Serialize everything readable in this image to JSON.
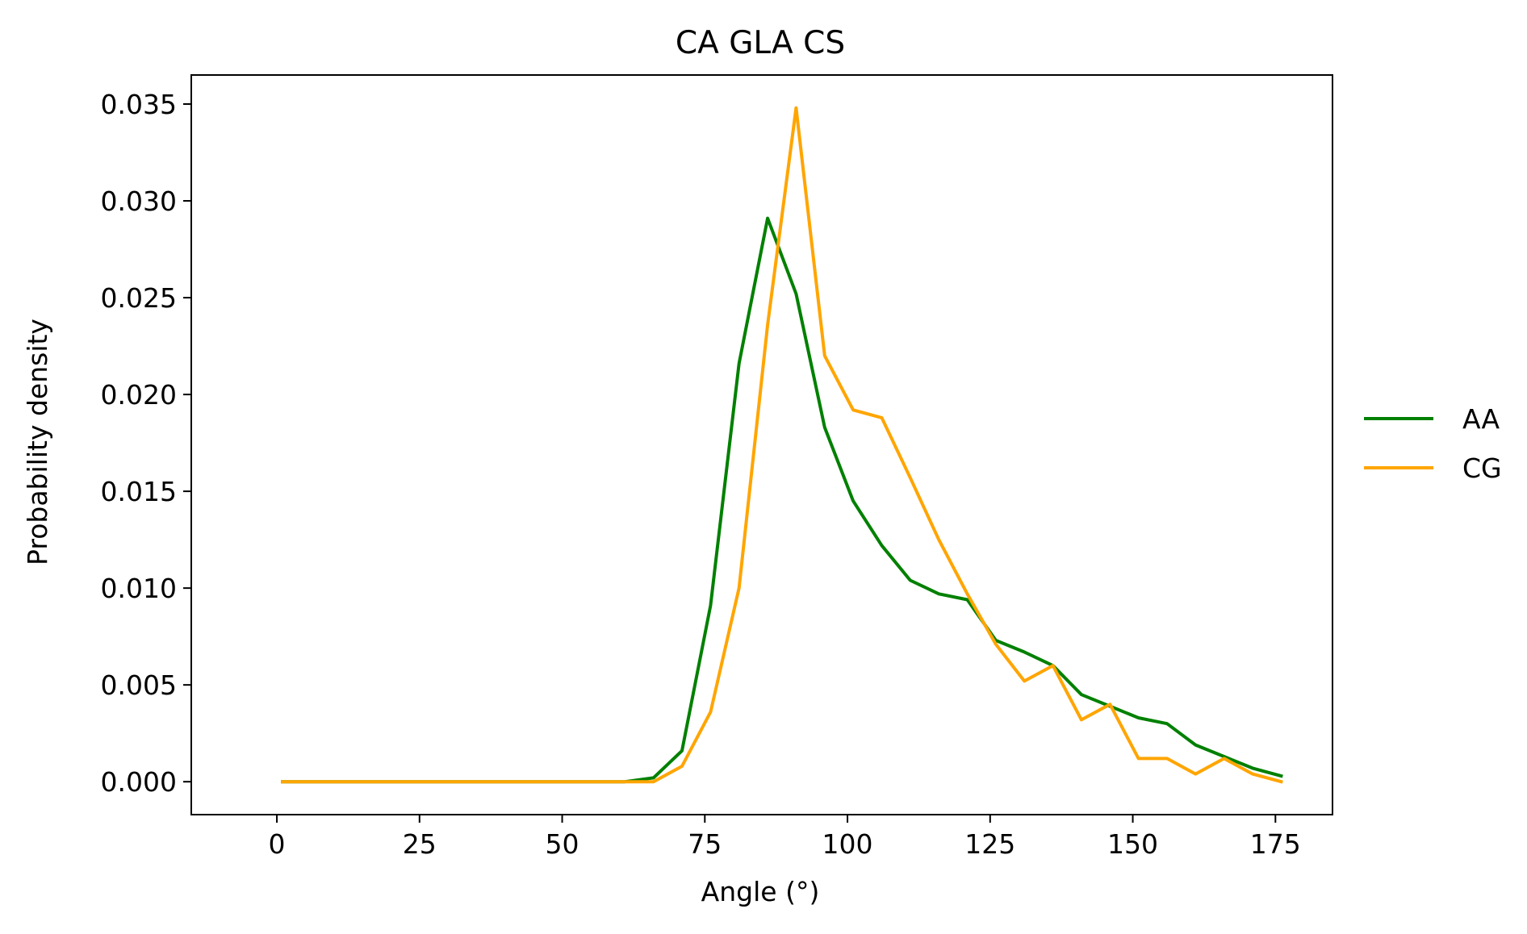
{
  "chart_data": {
    "type": "line",
    "title": "CA GLA CS",
    "xlabel": "Angle (°)",
    "ylabel": "Probability density",
    "xlim": [
      -15,
      185
    ],
    "ylim": [
      -0.0017,
      0.0365
    ],
    "xticks": [
      0,
      25,
      50,
      75,
      100,
      125,
      150,
      175
    ],
    "xtick_labels": [
      "0",
      "25",
      "50",
      "75",
      "100",
      "125",
      "150",
      "175"
    ],
    "yticks": [
      0.0,
      0.005,
      0.01,
      0.015,
      0.02,
      0.025,
      0.03,
      0.035
    ],
    "ytick_labels": [
      "0.000",
      "0.005",
      "0.010",
      "0.015",
      "0.020",
      "0.025",
      "0.030",
      "0.035"
    ],
    "grid": false,
    "legend_position": "outside-right",
    "x": [
      1,
      6,
      11,
      16,
      21,
      26,
      31,
      36,
      41,
      46,
      51,
      56,
      61,
      66,
      71,
      76,
      81,
      86,
      91,
      96,
      101,
      106,
      111,
      116,
      121,
      126,
      131,
      136,
      141,
      146,
      151,
      156,
      161,
      166,
      171,
      176
    ],
    "series": [
      {
        "name": "AA",
        "color": "#008000",
        "values": [
          0,
          0,
          0,
          0,
          0,
          0,
          0,
          0,
          0,
          0,
          0,
          0,
          0,
          0.0002,
          0.0016,
          0.0091,
          0.0216,
          0.0291,
          0.0252,
          0.0183,
          0.0145,
          0.0122,
          0.0104,
          0.0097,
          0.0094,
          0.0073,
          0.0067,
          0.006,
          0.0045,
          0.0039,
          0.0033,
          0.003,
          0.0019,
          0.0013,
          0.0007,
          0.0003
        ]
      },
      {
        "name": "CG",
        "color": "#ffa500",
        "values": [
          0,
          0,
          0,
          0,
          0,
          0,
          0,
          0,
          0,
          0,
          0,
          0,
          0,
          0,
          0.0008,
          0.0036,
          0.01,
          0.0236,
          0.0348,
          0.022,
          0.0192,
          0.0188,
          0.0157,
          0.0125,
          0.0097,
          0.0071,
          0.0052,
          0.006,
          0.0032,
          0.004,
          0.0012,
          0.0012,
          0.0004,
          0.0012,
          0.0004,
          0
        ]
      }
    ]
  }
}
